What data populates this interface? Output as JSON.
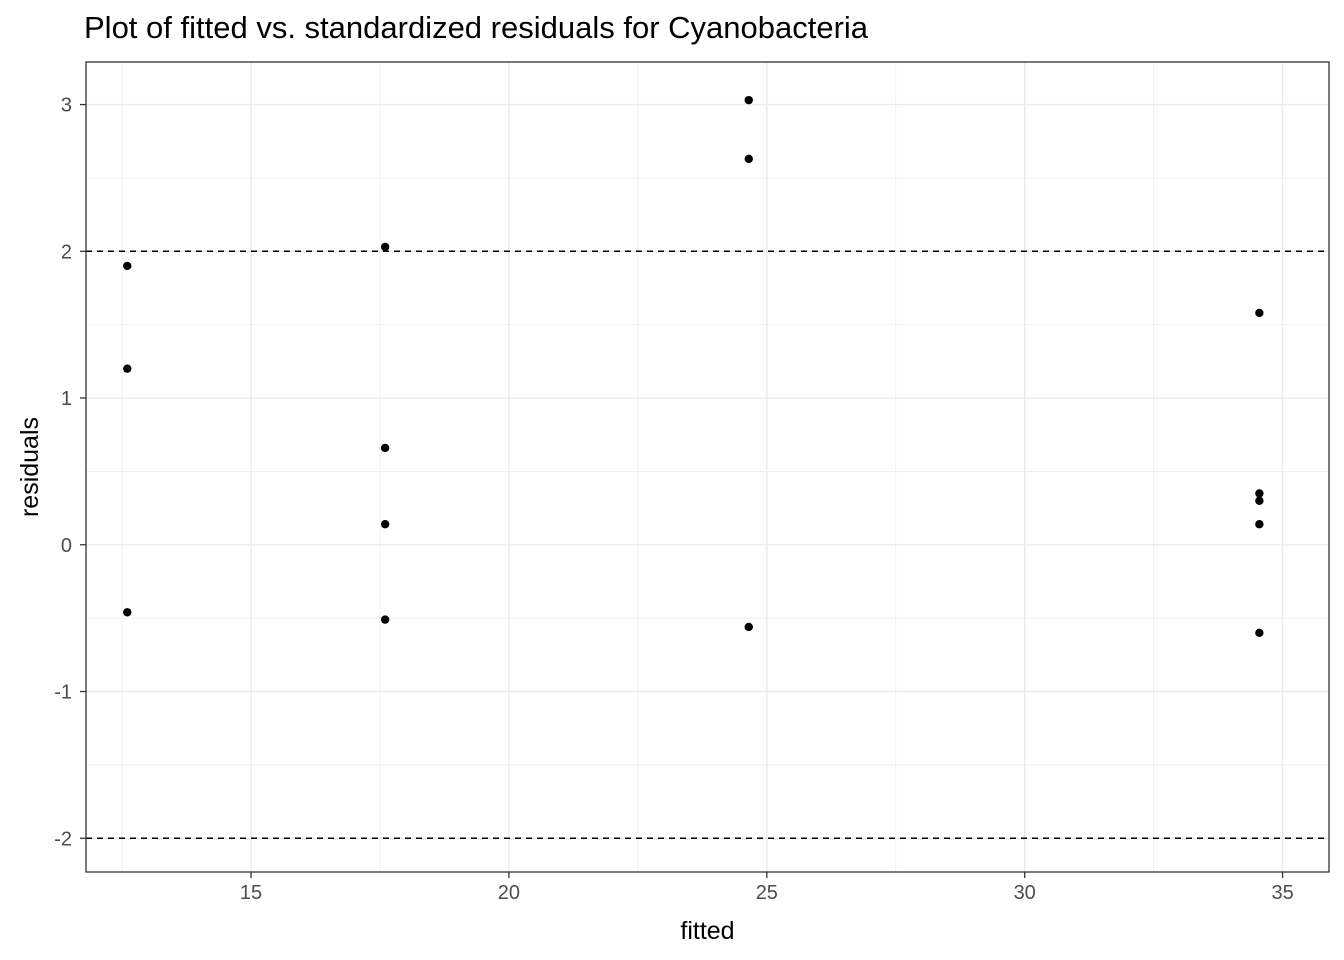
{
  "chart_data": {
    "type": "scatter",
    "title": "Plot of fitted vs. standardized residuals for Cyanobacteria",
    "xlabel": "fitted",
    "ylabel": "residuals",
    "xlim": [
      11.8,
      35.9
    ],
    "ylim": [
      -2.23,
      3.29
    ],
    "x_ticks": [
      15,
      20,
      25,
      30,
      35
    ],
    "y_ticks": [
      -2,
      -1,
      0,
      1,
      2,
      3
    ],
    "grid": true,
    "reference_lines": [
      2,
      -2
    ],
    "points": [
      {
        "x": 12.6,
        "y": 1.9
      },
      {
        "x": 12.6,
        "y": 1.2
      },
      {
        "x": 12.6,
        "y": -0.46
      },
      {
        "x": 17.6,
        "y": 2.03
      },
      {
        "x": 17.6,
        "y": 0.66
      },
      {
        "x": 17.6,
        "y": 0.14
      },
      {
        "x": 17.6,
        "y": -0.51
      },
      {
        "x": 24.65,
        "y": 3.03
      },
      {
        "x": 24.65,
        "y": 2.63
      },
      {
        "x": 24.65,
        "y": -0.56
      },
      {
        "x": 34.55,
        "y": 1.58
      },
      {
        "x": 34.55,
        "y": 0.35
      },
      {
        "x": 34.55,
        "y": 0.3
      },
      {
        "x": 34.55,
        "y": 0.14
      },
      {
        "x": 34.55,
        "y": -0.6
      }
    ],
    "colors": {
      "points": "#000000",
      "grid": "#ebebeb",
      "panel_border": "#333333",
      "reference_line": "#000000"
    }
  }
}
